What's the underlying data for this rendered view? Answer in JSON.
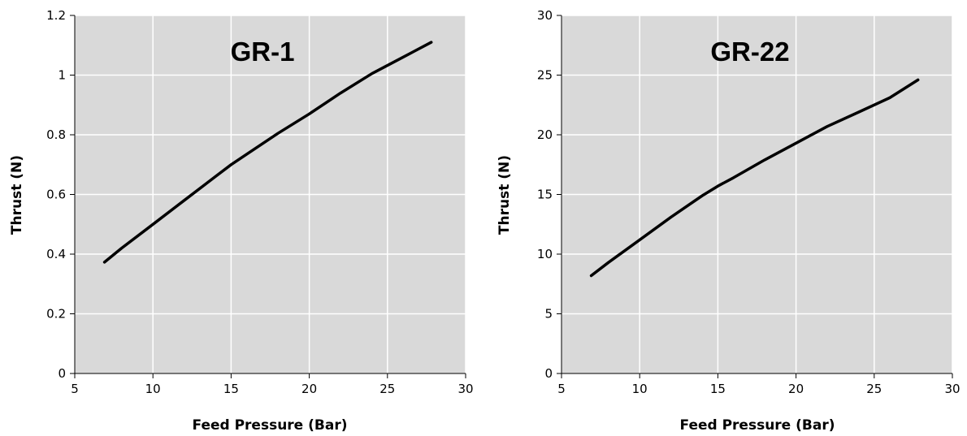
{
  "colors": {
    "plot_background": "#d9d9d9",
    "gridline": "#ffffff",
    "series_line": "#000000",
    "axis": "#000000"
  },
  "chart_data": [
    {
      "type": "line",
      "title": "GR-1",
      "xlabel": "Feed Pressure (Bar)",
      "ylabel": "Thrust (N)",
      "xlim": [
        5,
        30
      ],
      "ylim": [
        0,
        1.2
      ],
      "x_ticks": [
        "5",
        "10",
        "15",
        "20",
        "25",
        "30"
      ],
      "y_ticks": [
        "0",
        "0.2",
        "0.4",
        "0.6",
        "0.8",
        "1",
        "1.2"
      ],
      "grid": true,
      "series": [
        {
          "x": [
            6.9,
            8,
            10,
            12,
            14,
            15,
            16,
            18,
            20,
            22,
            24,
            26,
            27.8
          ],
          "values": [
            0.373,
            0.42,
            0.5,
            0.58,
            0.66,
            0.7,
            0.735,
            0.805,
            0.87,
            0.94,
            1.005,
            1.06,
            1.11
          ]
        }
      ]
    },
    {
      "type": "line",
      "title": "GR-22",
      "xlabel": "Feed Pressure (Bar)",
      "ylabel": "Thrust (N)",
      "xlim": [
        5,
        30
      ],
      "ylim": [
        0,
        30
      ],
      "x_ticks": [
        "5",
        "10",
        "15",
        "20",
        "25",
        "30"
      ],
      "y_ticks": [
        "0",
        "5",
        "10",
        "15",
        "20",
        "25",
        "30"
      ],
      "grid": true,
      "series": [
        {
          "x": [
            6.9,
            8,
            10,
            12,
            14,
            15,
            16,
            18,
            20,
            22,
            24,
            26,
            27.8
          ],
          "values": [
            8.2,
            9.3,
            11.2,
            13.1,
            14.9,
            15.7,
            16.4,
            17.9,
            19.3,
            20.7,
            21.9,
            23.1,
            24.6
          ]
        }
      ]
    }
  ]
}
